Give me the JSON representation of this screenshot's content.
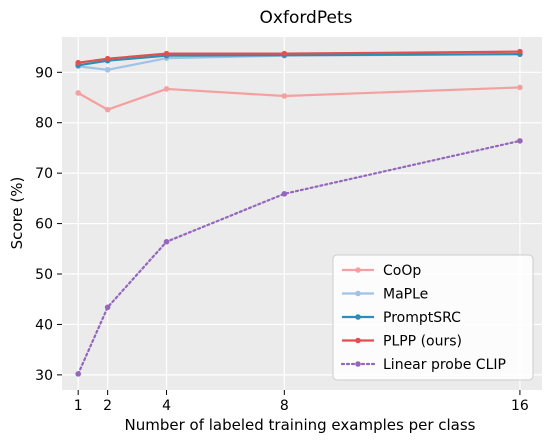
{
  "chart_data": {
    "type": "line",
    "title": "OxfordPets",
    "xlabel": "Number of labeled training examples per class",
    "ylabel": "Score (%)",
    "x": [
      1,
      2,
      4,
      8,
      16
    ],
    "xticks": [
      "1",
      "2",
      "4",
      "8",
      "16"
    ],
    "yticks": [
      "30",
      "40",
      "50",
      "60",
      "70",
      "80",
      "90"
    ],
    "xlim": [
      0.45,
      16.75
    ],
    "ylim": [
      27,
      97
    ],
    "grid": true,
    "legend_position": "lower-right",
    "series": [
      {
        "name": "CoOp",
        "color": "#f4a0a0",
        "style": "solid",
        "values": [
          85.9,
          82.6,
          86.7,
          85.3,
          87.0
        ]
      },
      {
        "name": "MaPLe",
        "color": "#9ec3e6",
        "style": "solid",
        "values": [
          91.2,
          90.5,
          92.8,
          93.3,
          93.6
        ]
      },
      {
        "name": "PromptSRC",
        "color": "#2a8fb5",
        "style": "solid",
        "values": [
          91.4,
          92.3,
          93.3,
          93.4,
          93.6
        ]
      },
      {
        "name": "PLPP (ours)",
        "color": "#e05050",
        "style": "solid",
        "values": [
          91.9,
          92.7,
          93.7,
          93.7,
          94.1
        ]
      },
      {
        "name": "Linear probe CLIP",
        "color": "#9467bd",
        "style": "dotted",
        "values": [
          30.2,
          43.4,
          56.4,
          65.9,
          76.4
        ]
      }
    ]
  }
}
